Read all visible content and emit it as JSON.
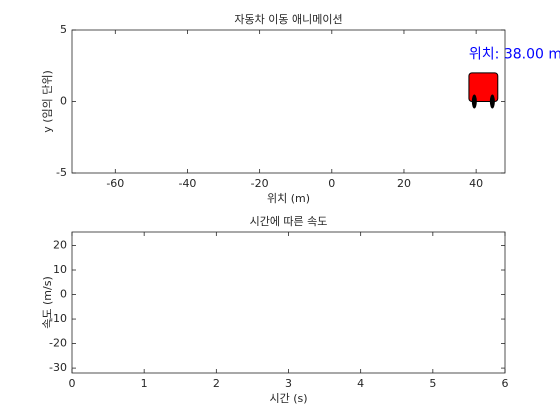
{
  "chart_data": [
    {
      "type": "scene",
      "title": "자동차 이동 애니메이션",
      "xlabel": "위치 (m)",
      "ylabel": "y (임의 단위)",
      "xlim": [
        -72,
        48
      ],
      "ylim": [
        -5,
        5
      ],
      "xticks": [
        -60,
        -40,
        -20,
        0,
        20,
        40
      ],
      "yticks": [
        -5,
        0,
        5
      ],
      "car": {
        "x": 38,
        "y": 0,
        "width": 8,
        "height": 2,
        "color": "#ff0000"
      },
      "wheels": {
        "x": [
          39.5,
          44.5
        ],
        "y": [
          0,
          0
        ],
        "color": "#000000"
      },
      "annotations": [
        {
          "text": "위치: 38.00 m",
          "x": 38,
          "y": 3.3,
          "color": "#0000ff"
        }
      ]
    },
    {
      "type": "line",
      "title": "시간에 따른 속도",
      "xlabel": "시간 (s)",
      "ylabel": "속도 (m/s)",
      "xlim": [
        0,
        6
      ],
      "ylim": [
        -32,
        25.5
      ],
      "xticks": [
        0,
        1,
        2,
        3,
        4,
        5,
        6
      ],
      "yticks": [
        -30,
        -20,
        -10,
        0,
        10,
        20
      ],
      "series": []
    }
  ]
}
